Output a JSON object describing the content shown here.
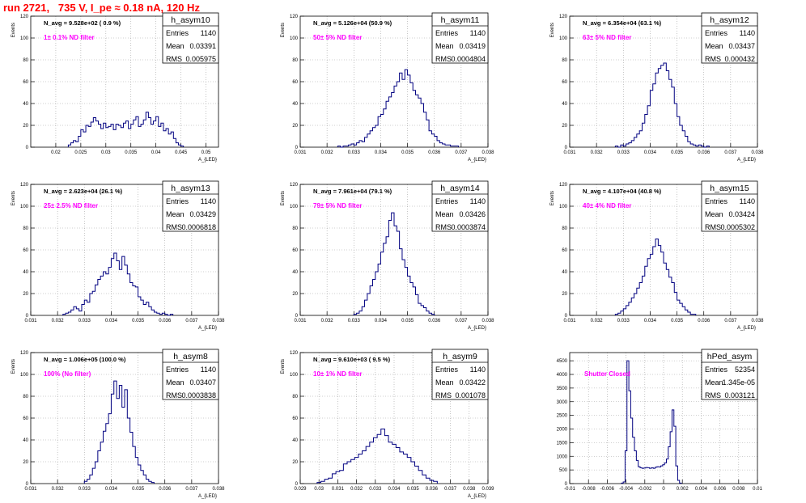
{
  "canvas": {
    "title": "run 2721,   735 V, I_pe ≈ 0.18 nA, 120 Hz"
  },
  "colors": {
    "title": "#ff0000",
    "line": "#000080",
    "annotation": "#ff00ff",
    "grid": "#a0a0a0",
    "frame": "#000000"
  },
  "chart_data": [
    {
      "type": "histogram",
      "title": "h_asym10",
      "ylabel": "Events",
      "xlabel": "A_{LED}",
      "xlim": [
        0.015,
        0.0525
      ],
      "ylim": [
        0,
        120
      ],
      "xticks": [
        "0.02",
        "0.025",
        "0.03",
        "0.035",
        "0.04",
        "0.045",
        "0.05"
      ],
      "yticks": [
        "0",
        "20",
        "40",
        "60",
        "80",
        "100",
        "120"
      ],
      "stats": [
        [
          "Entries",
          "1140"
        ],
        [
          "Mean",
          "0.03391"
        ],
        [
          "RMS",
          "0.005975"
        ]
      ],
      "navg": "N_avg = 9.528e+02 ( 0.9 %)",
      "filter": "1± 0.1% ND filter",
      "bins_start": 0.0225,
      "bin_width": 0.0005,
      "counts": [
        2,
        4,
        6,
        5,
        10,
        16,
        14,
        20,
        19,
        23,
        27,
        24,
        21,
        17,
        22,
        18,
        19,
        21,
        16,
        21,
        20,
        18,
        22,
        24,
        17,
        21,
        25,
        28,
        19,
        21,
        25,
        32,
        27,
        21,
        24,
        28,
        19,
        22,
        15,
        17,
        12,
        14,
        8,
        4,
        2,
        1
      ]
    },
    {
      "type": "histogram",
      "title": "h_asym11",
      "ylabel": "Events",
      "xlabel": "A_{LED}",
      "xlim": [
        0.031,
        0.038
      ],
      "ylim": [
        0,
        120
      ],
      "xticks": [
        "0.031",
        "0.032",
        "0.033",
        "0.034",
        "0.035",
        "0.036",
        "0.037",
        "0.038"
      ],
      "yticks": [
        "0",
        "20",
        "40",
        "60",
        "80",
        "100",
        "120"
      ],
      "stats": [
        [
          "Entries",
          "1140"
        ],
        [
          "Mean",
          "0.03419"
        ],
        [
          "RMS",
          "0.0004804"
        ]
      ],
      "navg": "N_avg = 5.126e+04 (50.9 %)",
      "filter": "50± 5% ND filter",
      "bins_start": 0.0324,
      "bin_width": 0.0001,
      "counts": [
        1,
        0,
        1,
        1,
        2,
        3,
        2,
        4,
        6,
        5,
        9,
        12,
        15,
        18,
        20,
        28,
        30,
        35,
        42,
        46,
        50,
        56,
        60,
        68,
        62,
        71,
        66,
        59,
        52,
        48,
        45,
        40,
        32,
        25,
        15,
        12,
        10,
        6,
        4,
        3,
        2,
        2,
        1,
        1,
        1
      ]
    },
    {
      "type": "histogram",
      "title": "h_asym12",
      "ylabel": "Events",
      "xlabel": "A_{LED}",
      "xlim": [
        0.031,
        0.038
      ],
      "ylim": [
        0,
        120
      ],
      "xticks": [
        "0.031",
        "0.032",
        "0.033",
        "0.034",
        "0.035",
        "0.036",
        "0.037",
        "0.038"
      ],
      "yticks": [
        "0",
        "20",
        "40",
        "60",
        "80",
        "100",
        "120"
      ],
      "stats": [
        [
          "Entries",
          "1140"
        ],
        [
          "Mean",
          "0.03437"
        ],
        [
          "RMS",
          "0.000432"
        ]
      ],
      "navg": "N_avg = 6.354e+04 (63.1 %)",
      "filter": "63± 5% ND filter",
      "bins_start": 0.0327,
      "bin_width": 0.0001,
      "counts": [
        1,
        0,
        2,
        1,
        3,
        4,
        6,
        9,
        12,
        15,
        22,
        30,
        38,
        52,
        58,
        68,
        72,
        75,
        77,
        70,
        62,
        55,
        40,
        28,
        20,
        15,
        10,
        5,
        3,
        2,
        1,
        2,
        1,
        0,
        1
      ]
    },
    {
      "type": "histogram",
      "title": "h_asym13",
      "ylabel": "Events",
      "xlabel": "A_{LED}",
      "xlim": [
        0.031,
        0.038
      ],
      "ylim": [
        0,
        120
      ],
      "xticks": [
        "0.031",
        "0.032",
        "0.033",
        "0.034",
        "0.035",
        "0.036",
        "0.037",
        "0.038"
      ],
      "yticks": [
        "0",
        "20",
        "40",
        "60",
        "80",
        "100",
        "120"
      ],
      "stats": [
        [
          "Entries",
          "1140"
        ],
        [
          "Mean",
          "0.03429"
        ],
        [
          "RMS",
          "0.0006818"
        ]
      ],
      "navg": "N_avg = 2.623e+04 (26.1 %)",
      "filter": "25± 2.5% ND filter",
      "bins_start": 0.0322,
      "bin_width": 0.0001,
      "counts": [
        1,
        2,
        3,
        5,
        8,
        6,
        4,
        10,
        14,
        12,
        20,
        22,
        28,
        33,
        36,
        40,
        38,
        44,
        52,
        57,
        50,
        42,
        54,
        46,
        38,
        30,
        27,
        26,
        17,
        14,
        10,
        12,
        8,
        5,
        3,
        2,
        1,
        2,
        1,
        0,
        1
      ]
    },
    {
      "type": "histogram",
      "title": "h_asym14",
      "ylabel": "Events",
      "xlabel": "A_{LED}",
      "xlim": [
        0.031,
        0.038
      ],
      "ylim": [
        0,
        120
      ],
      "xticks": [
        "0.031",
        "0.032",
        "0.033",
        "0.034",
        "0.035",
        "0.036",
        "0.037",
        "0.038"
      ],
      "yticks": [
        "0",
        "20",
        "40",
        "60",
        "80",
        "100",
        "120"
      ],
      "stats": [
        [
          "Entries",
          "1140"
        ],
        [
          "Mean",
          "0.03426"
        ],
        [
          "RMS",
          "0.0003874"
        ]
      ],
      "navg": "N_avg = 7.961e+04 (79.1 %)",
      "filter": "79± 5% ND filter",
      "bins_start": 0.033,
      "bin_width": 0.0001,
      "counts": [
        1,
        2,
        4,
        8,
        14,
        20,
        27,
        33,
        40,
        47,
        58,
        66,
        72,
        87,
        94,
        82,
        77,
        61,
        51,
        44,
        36,
        30,
        26,
        19,
        11,
        9,
        7,
        4,
        2,
        1
      ]
    },
    {
      "type": "histogram",
      "title": "h_asym15",
      "ylabel": "Events",
      "xlabel": "A_{LED}",
      "xlim": [
        0.031,
        0.038
      ],
      "ylim": [
        0,
        120
      ],
      "xticks": [
        "0.031",
        "0.032",
        "0.033",
        "0.034",
        "0.035",
        "0.036",
        "0.037",
        "0.038"
      ],
      "yticks": [
        "0",
        "20",
        "40",
        "60",
        "80",
        "100",
        "120"
      ],
      "stats": [
        [
          "Entries",
          "1140"
        ],
        [
          "Mean",
          "0.03424"
        ],
        [
          "RMS",
          "0.0005302"
        ]
      ],
      "navg": "N_avg = 4.107e+04 (40.8 %)",
      "filter": "40± 4% ND filter",
      "bins_start": 0.0327,
      "bin_width": 0.0001,
      "counts": [
        1,
        2,
        4,
        6,
        9,
        12,
        16,
        20,
        25,
        30,
        36,
        45,
        52,
        56,
        63,
        70,
        64,
        58,
        48,
        42,
        35,
        30,
        21,
        14,
        11,
        8,
        5,
        3,
        1,
        1
      ]
    },
    {
      "type": "histogram",
      "title": "h_asym8",
      "ylabel": "Events",
      "xlabel": "A_{LED}",
      "xlim": [
        0.031,
        0.038
      ],
      "ylim": [
        0,
        120
      ],
      "xticks": [
        "0.031",
        "0.032",
        "0.033",
        "0.034",
        "0.035",
        "0.036",
        "0.037",
        "0.038"
      ],
      "yticks": [
        "0",
        "20",
        "40",
        "60",
        "80",
        "100",
        "120"
      ],
      "stats": [
        [
          "Entries",
          "1140"
        ],
        [
          "Mean",
          "0.03407"
        ],
        [
          "RMS",
          "0.0003838"
        ]
      ],
      "navg": "N_avg = 1.006e+05 (100.0 %)",
      "filter": "100% (No filter)",
      "bins_start": 0.033,
      "bin_width": 0.0001,
      "counts": [
        2,
        4,
        8,
        14,
        20,
        30,
        38,
        48,
        55,
        64,
        82,
        94,
        78,
        90,
        70,
        86,
        60,
        47,
        34,
        24,
        17,
        12,
        8,
        4,
        2,
        1
      ]
    },
    {
      "type": "histogram",
      "title": "h_asym9",
      "ylabel": "Events",
      "xlabel": "A_{LED}",
      "xlim": [
        0.029,
        0.039
      ],
      "ylim": [
        0,
        120
      ],
      "xticks": [
        "0.029",
        "0.03",
        "0.031",
        "0.032",
        "0.033",
        "0.034",
        "0.035",
        "0.036",
        "0.037",
        "0.038",
        "0.039"
      ],
      "yticks": [
        "0",
        "20",
        "40",
        "60",
        "80",
        "100",
        "120"
      ],
      "stats": [
        [
          "Entries",
          "1140"
        ],
        [
          "Mean",
          "0.03422"
        ],
        [
          "RMS",
          "0.001078"
        ]
      ],
      "navg": "N_avg = 9.610e+03 ( 9.5 %)",
      "filter": "10± 1% ND filter",
      "bins_start": 0.0299,
      "bin_width": 0.0002,
      "counts": [
        1,
        2,
        4,
        5,
        9,
        11,
        12,
        18,
        20,
        22,
        24,
        27,
        30,
        34,
        38,
        42,
        45,
        50,
        44,
        38,
        36,
        33,
        29,
        27,
        24,
        20,
        16,
        12,
        8,
        5,
        3,
        2
      ]
    },
    {
      "type": "histogram",
      "title": "hPed_asym",
      "ylabel": "",
      "xlabel": "",
      "xlim": [
        -0.01,
        0.01
      ],
      "ylim": [
        0,
        4800
      ],
      "xticks": [
        "-0.01",
        "-0.008",
        "-0.006",
        "-0.004",
        "-0.002",
        "0",
        "0.002",
        "0.004",
        "0.006",
        "0.008",
        "0.01"
      ],
      "yticks": [
        "0",
        "500",
        "1000",
        "1500",
        "2000",
        "2500",
        "3000",
        "3500",
        "4000",
        "4500"
      ],
      "stats": [
        [
          "Entries",
          "52354"
        ],
        [
          "Mean",
          "1.345e-05"
        ],
        [
          "RMS",
          "0.003121"
        ]
      ],
      "navg": "",
      "filter": "Shutter Closed",
      "bins_start": -0.0045,
      "bin_width": 0.0002,
      "counts": [
        20,
        60,
        1200,
        4500,
        3400,
        2400,
        1700,
        1200,
        850,
        620,
        580,
        560,
        570,
        590,
        580,
        560,
        580,
        560,
        600,
        620,
        610,
        650,
        690,
        760,
        900,
        1350,
        1900,
        2700,
        2100,
        650,
        120,
        20
      ]
    }
  ]
}
